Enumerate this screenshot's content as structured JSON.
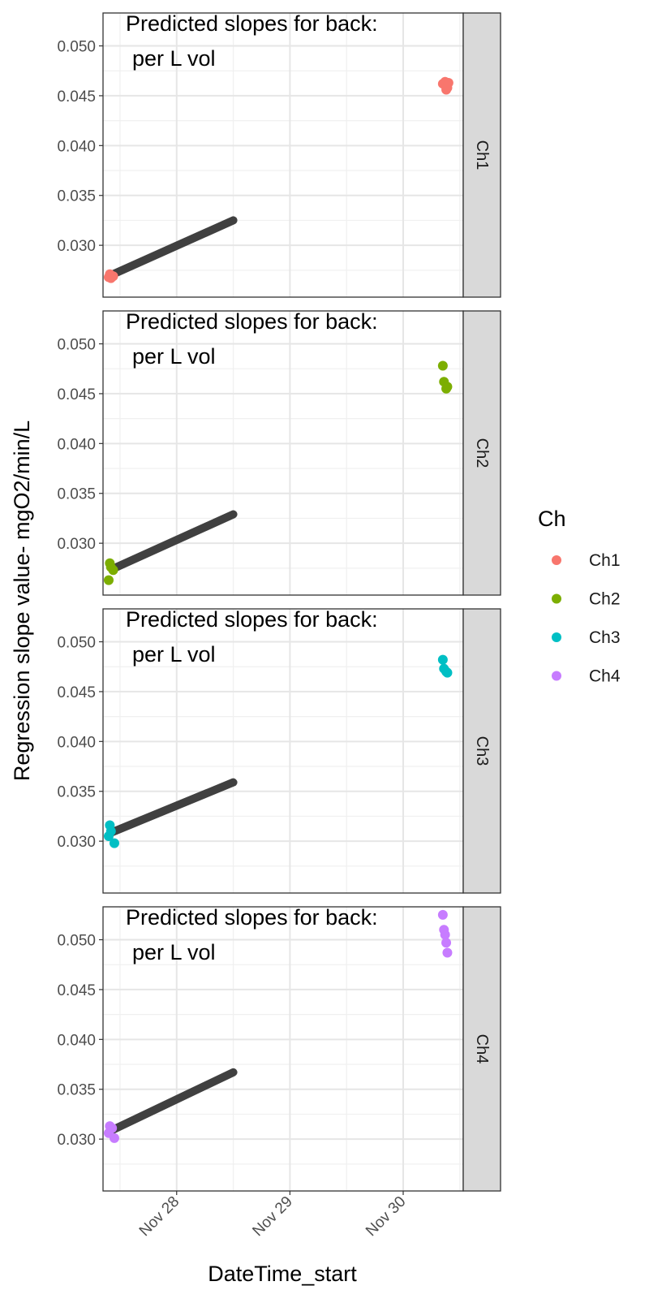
{
  "chart_data": {
    "type": "scatter",
    "xlabel": "DateTime_start",
    "ylabel": "Regression slope value- mgO2/min/L",
    "x_ticks": [
      "Nov 28",
      "Nov 29",
      "Nov 30"
    ],
    "x_range_days": [
      27.35,
      30.53
    ],
    "x_tick_days": [
      28,
      29,
      30
    ],
    "y_ticks": [
      0.03,
      0.035,
      0.04,
      0.045,
      0.05
    ],
    "y_tick_labels": [
      "0.030",
      "0.035",
      "0.040",
      "0.045",
      "0.050"
    ],
    "ylim": [
      0.0248,
      0.0533
    ],
    "grid": true,
    "legend": {
      "title": "Ch",
      "position": "right",
      "entries": [
        {
          "label": "Ch1",
          "color": "#F8766D"
        },
        {
          "label": "Ch2",
          "color": "#7CAE00"
        },
        {
          "label": "Ch3",
          "color": "#00BFC4"
        },
        {
          "label": "Ch4",
          "color": "#C77CFF"
        }
      ]
    },
    "trend_color": "#404040",
    "panels": [
      {
        "strip": "Ch1",
        "color": "#F8766D",
        "annotation": [
          "Predicted slopes for back:",
          "per L vol"
        ],
        "trend_line": {
          "x": [
            27.42,
            28.5
          ],
          "y": [
            0.027,
            0.0325
          ]
        },
        "points": [
          {
            "x": 27.4,
            "y": 0.0268
          },
          {
            "x": 27.41,
            "y": 0.0271
          },
          {
            "x": 27.42,
            "y": 0.0267
          },
          {
            "x": 27.44,
            "y": 0.0269
          },
          {
            "x": 30.35,
            "y": 0.0462
          },
          {
            "x": 30.37,
            "y": 0.0464
          },
          {
            "x": 30.38,
            "y": 0.0456
          },
          {
            "x": 30.39,
            "y": 0.0458
          },
          {
            "x": 30.4,
            "y": 0.0463
          }
        ]
      },
      {
        "strip": "Ch2",
        "color": "#7CAE00",
        "annotation": [
          "Predicted slopes for back:",
          "per L vol"
        ],
        "trend_line": {
          "x": [
            27.43,
            28.5
          ],
          "y": [
            0.0274,
            0.0329
          ]
        },
        "points": [
          {
            "x": 27.4,
            "y": 0.0263
          },
          {
            "x": 27.41,
            "y": 0.028
          },
          {
            "x": 27.42,
            "y": 0.0276
          },
          {
            "x": 27.44,
            "y": 0.0273
          },
          {
            "x": 30.35,
            "y": 0.0478
          },
          {
            "x": 30.36,
            "y": 0.0462
          },
          {
            "x": 30.38,
            "y": 0.0455
          },
          {
            "x": 30.39,
            "y": 0.0457
          }
        ]
      },
      {
        "strip": "Ch3",
        "color": "#00BFC4",
        "annotation": [
          "Predicted slopes for back:",
          "per L vol"
        ],
        "trend_line": {
          "x": [
            27.43,
            28.5
          ],
          "y": [
            0.0309,
            0.0359
          ]
        },
        "points": [
          {
            "x": 27.4,
            "y": 0.0305
          },
          {
            "x": 27.41,
            "y": 0.0316
          },
          {
            "x": 27.42,
            "y": 0.031
          },
          {
            "x": 27.45,
            "y": 0.0298
          },
          {
            "x": 30.35,
            "y": 0.0482
          },
          {
            "x": 30.36,
            "y": 0.0473
          },
          {
            "x": 30.38,
            "y": 0.047
          },
          {
            "x": 30.39,
            "y": 0.0469
          }
        ]
      },
      {
        "strip": "Ch4",
        "color": "#C77CFF",
        "annotation": [
          "Predicted slopes for back:",
          "per L vol"
        ],
        "trend_line": {
          "x": [
            27.43,
            28.5
          ],
          "y": [
            0.0309,
            0.0367
          ]
        },
        "points": [
          {
            "x": 27.4,
            "y": 0.0306
          },
          {
            "x": 27.41,
            "y": 0.0313
          },
          {
            "x": 27.43,
            "y": 0.0311
          },
          {
            "x": 27.45,
            "y": 0.0301
          },
          {
            "x": 30.35,
            "y": 0.0525
          },
          {
            "x": 30.36,
            "y": 0.051
          },
          {
            "x": 30.37,
            "y": 0.0505
          },
          {
            "x": 30.38,
            "y": 0.0497
          },
          {
            "x": 30.39,
            "y": 0.0487
          }
        ]
      }
    ]
  }
}
